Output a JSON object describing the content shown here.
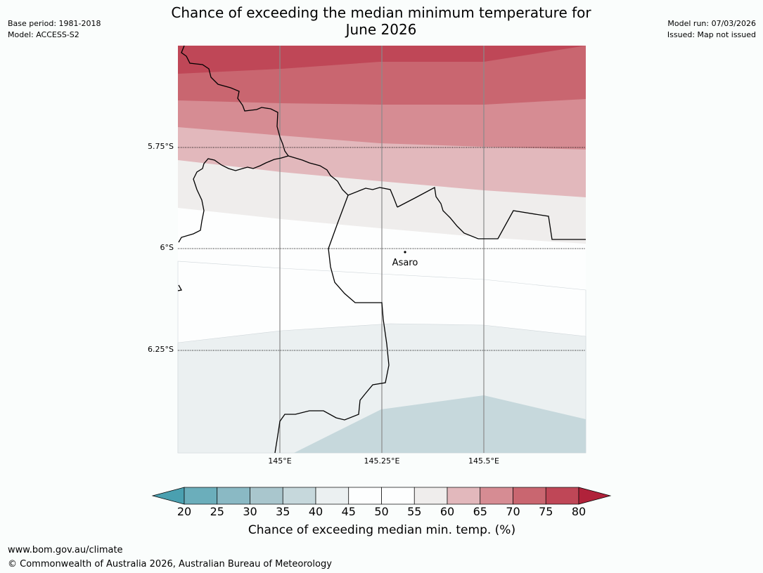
{
  "header": {
    "title_line1": "Chance of exceeding the median minimum temperature for",
    "title_line2": "June 2026",
    "base_period": "Base period: 1981-2018",
    "model": "Model: ACCESS-S2",
    "model_run": "Model run: 07/03/2026",
    "issued": "Issued: Map not issued"
  },
  "map": {
    "latitude_labels": [
      "5.75°S",
      "6°S",
      "6.25°S"
    ],
    "longitude_labels": [
      "145°E",
      "145.25°E",
      "145.5°E"
    ],
    "place": {
      "name": "Asaro"
    }
  },
  "colorbar": {
    "ticks": [
      "20",
      "25",
      "30",
      "35",
      "40",
      "45",
      "50",
      "55",
      "60",
      "65",
      "70",
      "75",
      "80"
    ],
    "colors": [
      "#6baebb",
      "#8ab9c4",
      "#a9c6cd",
      "#c6d8dc",
      "#ebf0f1",
      "#fdfefe",
      "#fdfefe",
      "#efedec",
      "#e2b8bc",
      "#d68c93",
      "#c96670",
      "#bf4757"
    ],
    "under_color": "#4aa0b0",
    "over_color": "#b0223a",
    "label": "Chance of exceeding median min. temp. (%)"
  },
  "footer": {
    "url": "www.bom.gov.au/climate",
    "copyright": "© Commonwealth of Australia 2026, Australian Bureau of Meteorology"
  }
}
